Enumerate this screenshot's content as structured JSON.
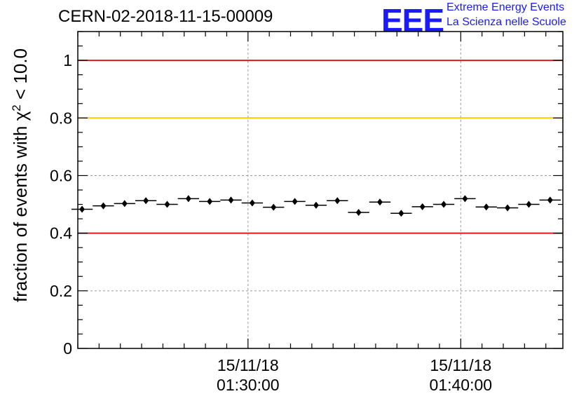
{
  "header": {
    "title": "CERN-02-2018-11-15-00009",
    "logo_text": "EEE",
    "brand_line1": "Extreme Energy Events",
    "brand_line2": "La Scienza nelle Scuole"
  },
  "colors": {
    "red_line": "#e8141e",
    "yellow_line": "#ffcc00",
    "brand_blue": "#1a1aff"
  },
  "chart_data": {
    "type": "scatter",
    "title": "CERN-02-2018-11-15-00009",
    "ylabel": "fraction of events with χ² < 10.0",
    "ylabel_parts": {
      "prefix": "fraction of events with ",
      "chi": "χ",
      "sup": "2",
      "suffix": " < 10.0"
    },
    "xlabel": "",
    "ylim": [
      0,
      1.1
    ],
    "yticks": [
      0,
      0.2,
      0.4,
      0.6,
      0.8,
      1
    ],
    "ytick_labels": [
      "0",
      "0.2",
      "0.4",
      "0.6",
      "0.8",
      "1"
    ],
    "xlim_minutes": [
      0,
      22.8
    ],
    "xticks": [
      {
        "minute": 8,
        "date": "15/11/18",
        "time": "01:30:00"
      },
      {
        "minute": 18,
        "date": "15/11/18",
        "time": "01:40:00"
      }
    ],
    "reference_lines": [
      {
        "y": 1.0,
        "color": "red"
      },
      {
        "y": 0.8,
        "color": "yellow"
      },
      {
        "y": 0.4,
        "color": "red"
      }
    ],
    "bin_width_minutes": 1,
    "x_minutes": [
      0.2,
      1.2,
      2.2,
      3.2,
      4.2,
      5.2,
      6.2,
      7.2,
      8.2,
      9.2,
      10.2,
      11.2,
      12.2,
      13.2,
      14.2,
      15.2,
      16.2,
      17.2,
      18.2,
      19.2,
      20.2,
      21.2,
      22.2
    ],
    "values": [
      0.483,
      0.495,
      0.503,
      0.513,
      0.5,
      0.52,
      0.51,
      0.515,
      0.505,
      0.49,
      0.51,
      0.497,
      0.513,
      0.472,
      0.508,
      0.469,
      0.492,
      0.5,
      0.52,
      0.491,
      0.488,
      0.5,
      0.515
    ]
  }
}
